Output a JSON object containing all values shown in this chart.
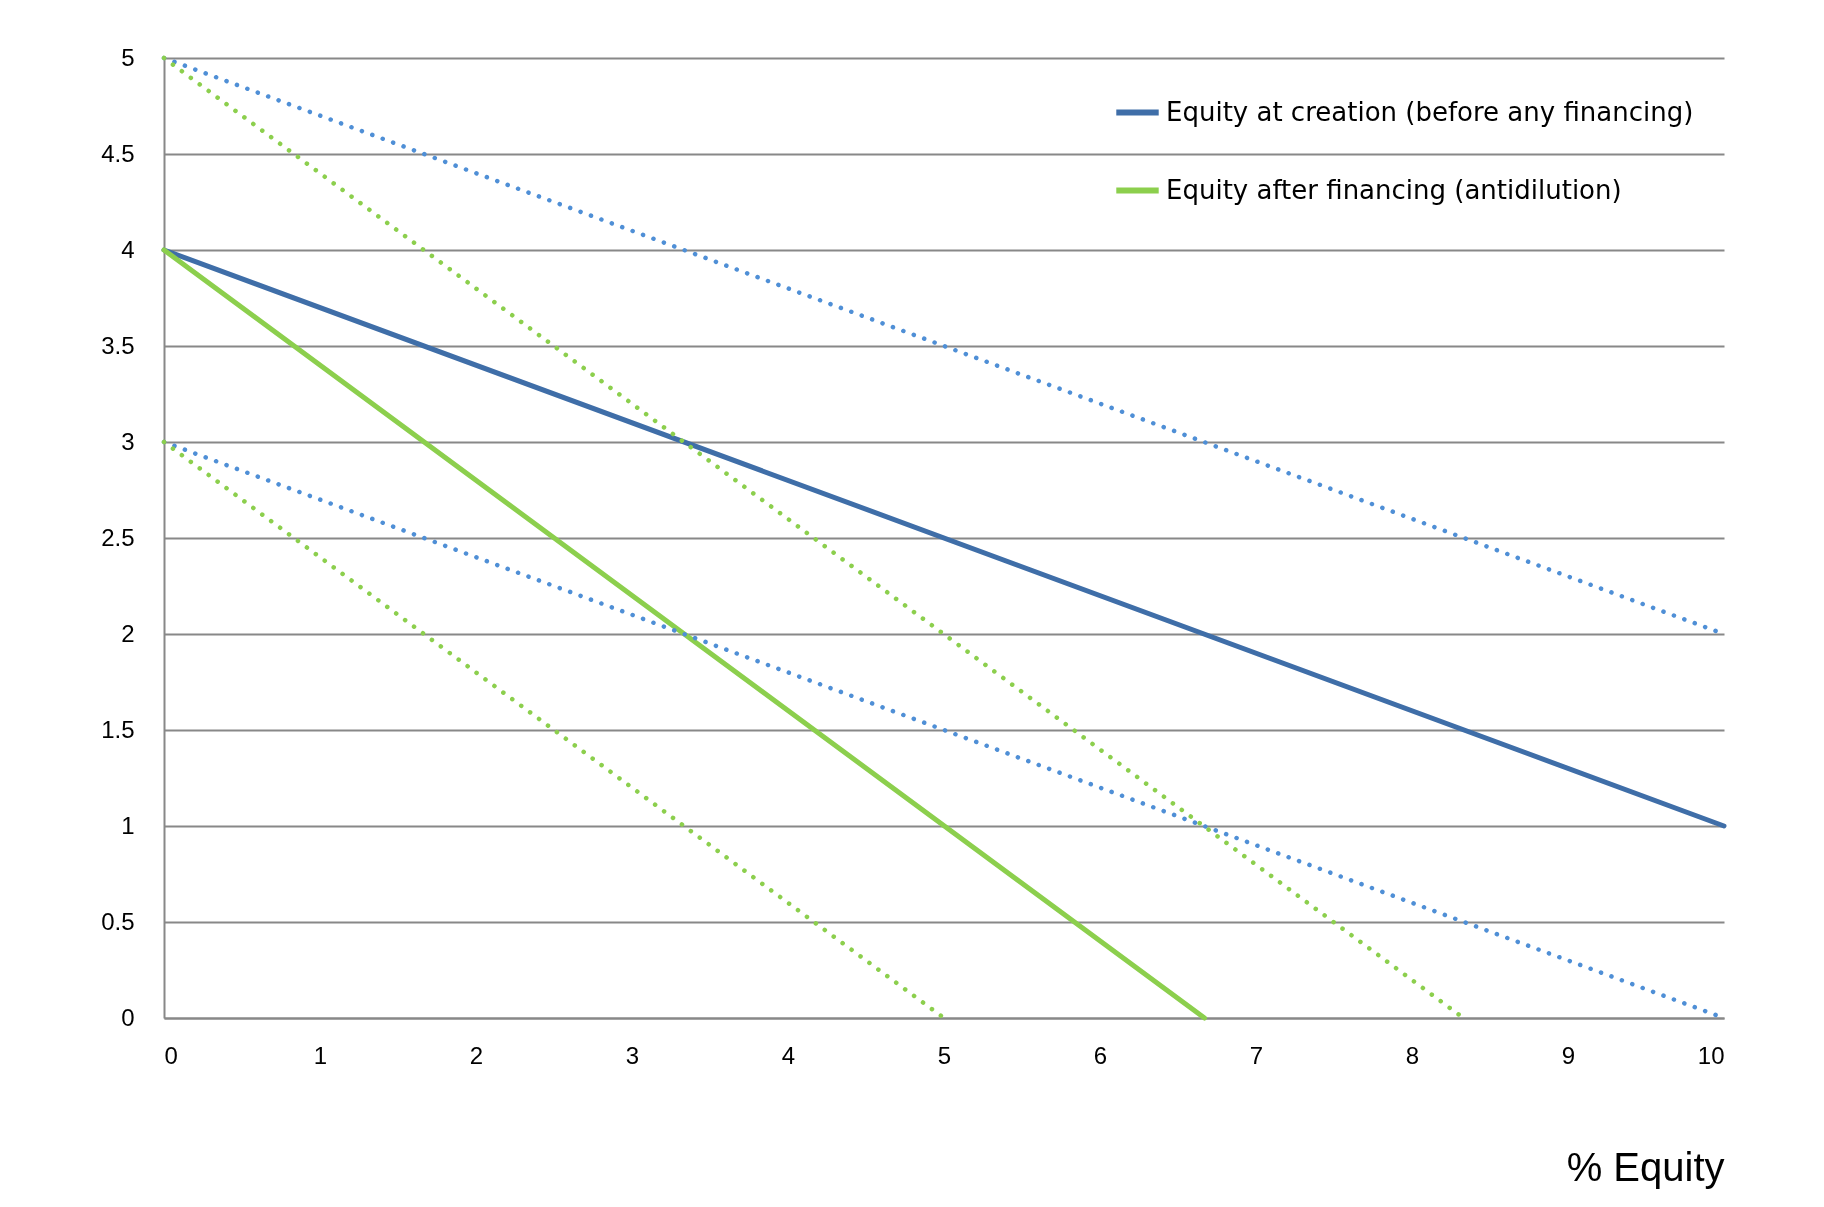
{
  "chart_data": {
    "type": "line",
    "xlabel": "% Equity",
    "xlim": [
      0,
      10
    ],
    "xticks": [
      0,
      1,
      2,
      3,
      4,
      5,
      6,
      7,
      8,
      9,
      10
    ],
    "ylim": [
      0,
      5
    ],
    "yticks": [
      0,
      0.5,
      1,
      1.5,
      2,
      2.5,
      3,
      3.5,
      4,
      4.5,
      5
    ],
    "grid": "y",
    "legend": "top right",
    "marker": "none",
    "series": [
      {
        "name": "Equity at creation (before any financing)",
        "color": "#3f6ea8",
        "line_style": "solid",
        "x": [
          0,
          10
        ],
        "values": [
          4,
          1
        ]
      },
      {
        "name": "Equity after financing (antidilution)",
        "color": "#8ccf4d",
        "line_style": "solid",
        "x": [
          0,
          6.67
        ],
        "values": [
          4,
          0
        ]
      },
      {
        "color": "#4f8fd6",
        "line_style": "dotted",
        "x": [
          0,
          10
        ],
        "values": [
          5,
          2
        ]
      },
      {
        "color": "#4f8fd6",
        "line_style": "dotted",
        "x": [
          0,
          10
        ],
        "values": [
          3,
          0
        ]
      },
      {
        "color": "#8ccf4d",
        "line_style": "dotted",
        "x": [
          0,
          8.33
        ],
        "values": [
          5,
          0
        ]
      },
      {
        "color": "#8ccf4d",
        "line_style": "dotted",
        "x": [
          0,
          5
        ],
        "values": [
          3,
          0
        ]
      }
    ]
  }
}
